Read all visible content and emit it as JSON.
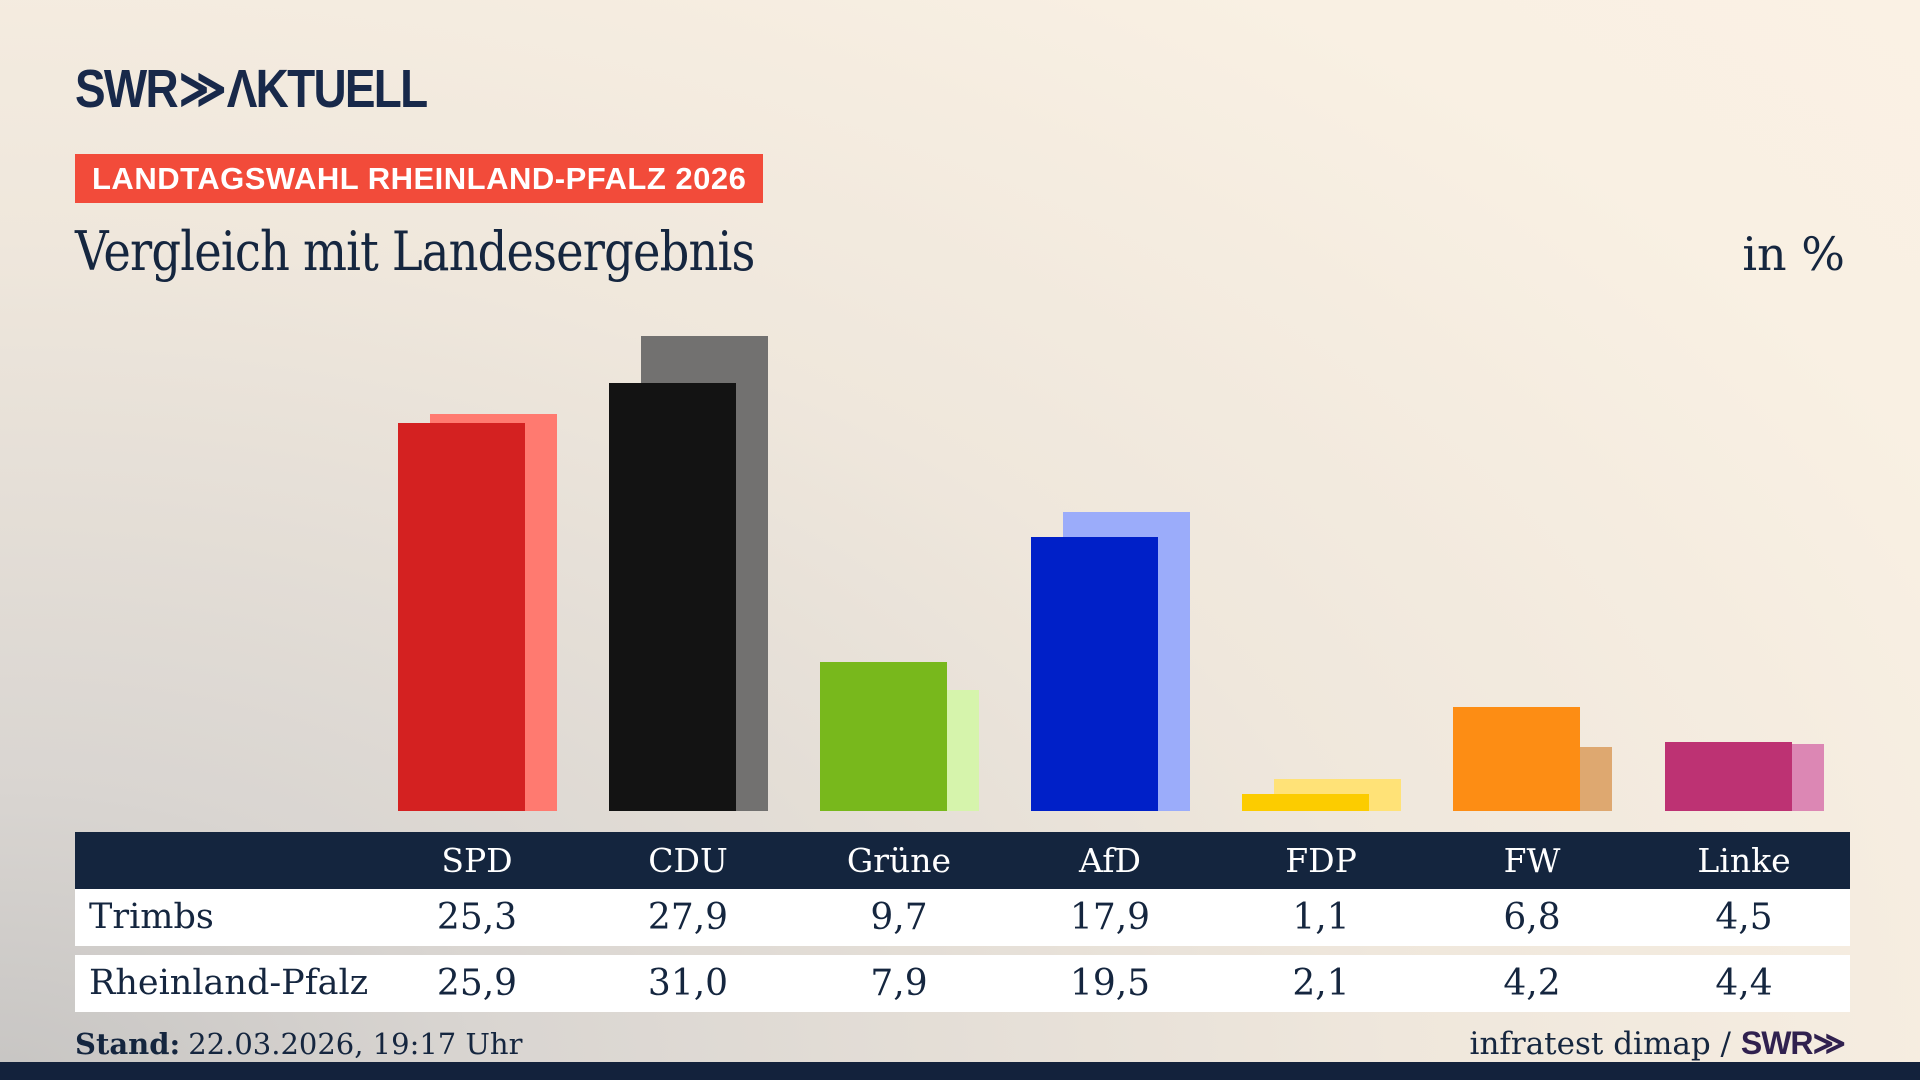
{
  "brand": {
    "swr": "SWR",
    "chevrons": "≫",
    "aktuell": "ΛKTUELL",
    "badge": "LANDTAGSWAHL RHEINLAND-PFALZ 2026"
  },
  "header": {
    "title": "Vergleich mit Landesergebnis",
    "unit_label": "in %"
  },
  "chart_data": {
    "type": "bar",
    "title": "Vergleich mit Landesergebnis",
    "unit": "in %",
    "categories": [
      "SPD",
      "CDU",
      "Grüne",
      "AfD",
      "FDP",
      "FW",
      "Linke"
    ],
    "series": [
      {
        "name": "Trimbs",
        "values": [
          25.3,
          27.9,
          9.7,
          17.9,
          1.1,
          6.8,
          4.5
        ]
      },
      {
        "name": "Rheinland-Pfalz",
        "values": [
          25.9,
          31.0,
          7.9,
          19.5,
          2.1,
          4.2,
          4.4
        ]
      }
    ],
    "colors": {
      "main": [
        "#d42121",
        "#131313",
        "#78b81c",
        "#0020c8",
        "#fccc00",
        "#fd8d14",
        "#bd3273"
      ],
      "light": [
        "#ff7a70",
        "#727170",
        "#d6f4ac",
        "#9bacfa",
        "#ffe277",
        "#dea870",
        "#dc87b4"
      ]
    },
    "ylim": [
      0,
      35.3
    ],
    "grid": false,
    "legend": "table-rows-below"
  },
  "table": {
    "row_labels": [
      "Trimbs",
      "Rheinland-Pfalz"
    ],
    "values_display": [
      [
        "25,3",
        "27,9",
        "9,7",
        "17,9",
        "1,1",
        "6,8",
        "4,5"
      ],
      [
        "25,9",
        "31,0",
        "7,9",
        "19,5",
        "2,1",
        "4,2",
        "4,4"
      ]
    ]
  },
  "footer": {
    "stand_label": "Stand:",
    "stand_value": "22.03.2026, 19:17 Uhr",
    "source_text": "infratest dimap / ",
    "source_brand": "SWR≫"
  },
  "colors": {
    "navy": "#14253e",
    "badge_red": "#f24b3a",
    "background_light": "#faf1e4",
    "background_dark": "#c7c5c3",
    "brand_purple": "#30214f"
  }
}
